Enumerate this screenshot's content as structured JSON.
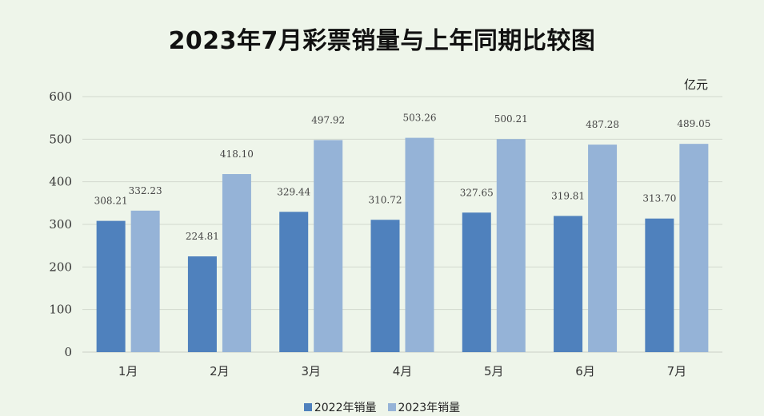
{
  "chart_data": {
    "type": "bar",
    "title": "2023年7月彩票销量与上年同期比较图",
    "unit": "亿元",
    "categories": [
      "1月",
      "2月",
      "3月",
      "4月",
      "5月",
      "6月",
      "7月"
    ],
    "series": [
      {
        "name": "2022年销量",
        "color": "#4f81bd",
        "values": [
          308.21,
          224.81,
          329.44,
          310.72,
          327.65,
          319.81,
          313.7
        ],
        "labels": [
          "308.21",
          "224.81",
          "329.44",
          "310.72",
          "327.65",
          "319.81",
          "313.70"
        ]
      },
      {
        "name": "2023年销量",
        "color": "#95b3d7",
        "values": [
          332.23,
          418.1,
          497.92,
          503.26,
          500.21,
          487.28,
          489.05
        ],
        "labels": [
          "332.23",
          "418.10",
          "497.92",
          "503.26",
          "500.21",
          "487.28",
          "489.05"
        ]
      }
    ],
    "ylim": [
      0,
      600
    ],
    "yticks": [
      0,
      100,
      200,
      300,
      400,
      500,
      600
    ],
    "grid": true,
    "legend_position": "bottom"
  }
}
